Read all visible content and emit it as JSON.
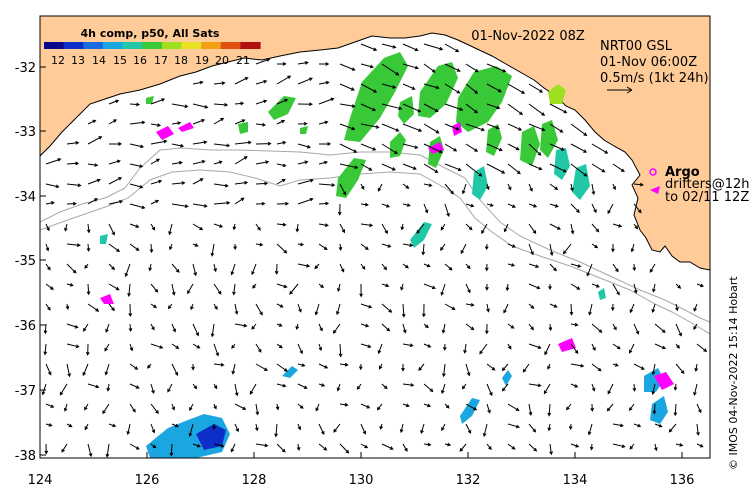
{
  "title": "4h comp, p50, All Sats",
  "date_label": "01-Nov-2022 08Z",
  "current_info": {
    "line1": "NRT00 GSL",
    "line2": "01-Nov 06:00Z",
    "line3": "0.5m/s (1kt 24h)"
  },
  "argo_label": "Argo",
  "drifters_label": "drifters@12h",
  "drifters_date": "to 02/11 12Z",
  "credit": "© IMOS 04-Nov-2022 15:14 Hobart",
  "colorbar": {
    "ticks": [
      "12",
      "13",
      "14",
      "15",
      "16",
      "17",
      "18",
      "19",
      "20",
      "21"
    ],
    "colors": [
      "#08088a",
      "#0e2ec8",
      "#1a6ae0",
      "#1aa6e0",
      "#20c8a8",
      "#38c838",
      "#9ee020",
      "#e8e020",
      "#f0a010",
      "#e05010",
      "#b01010"
    ]
  },
  "chart_data": {
    "type": "map",
    "xlim": [
      124,
      136.5
    ],
    "ylim": [
      -38.1,
      -31.3
    ],
    "xticks": [
      "124",
      "126",
      "128",
      "130",
      "132",
      "134",
      "136"
    ],
    "yticks": [
      "-32",
      "-33",
      "-34",
      "-35",
      "-36",
      "-37",
      "-38"
    ],
    "land_color": "#ffcc99"
  }
}
